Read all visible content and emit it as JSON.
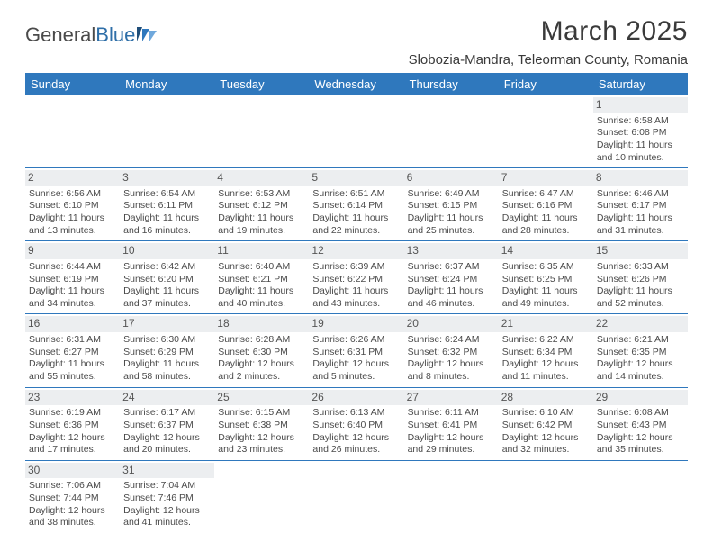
{
  "logo": {
    "text_gray": "General",
    "text_blue": "Blue"
  },
  "title": "March 2025",
  "location": "Slobozia-Mandra, Teleorman County, Romania",
  "colors": {
    "header_bg": "#2f78bd",
    "header_text": "#ffffff",
    "cell_border": "#2f78bd",
    "daynum_bg": "#eceef0",
    "body_text": "#4a4a4a"
  },
  "weekdays": [
    "Sunday",
    "Monday",
    "Tuesday",
    "Wednesday",
    "Thursday",
    "Friday",
    "Saturday"
  ],
  "weeks": [
    [
      null,
      null,
      null,
      null,
      null,
      null,
      {
        "n": "1",
        "sr": "Sunrise: 6:58 AM",
        "ss": "Sunset: 6:08 PM",
        "d1": "Daylight: 11 hours",
        "d2": "and 10 minutes."
      }
    ],
    [
      {
        "n": "2",
        "sr": "Sunrise: 6:56 AM",
        "ss": "Sunset: 6:10 PM",
        "d1": "Daylight: 11 hours",
        "d2": "and 13 minutes."
      },
      {
        "n": "3",
        "sr": "Sunrise: 6:54 AM",
        "ss": "Sunset: 6:11 PM",
        "d1": "Daylight: 11 hours",
        "d2": "and 16 minutes."
      },
      {
        "n": "4",
        "sr": "Sunrise: 6:53 AM",
        "ss": "Sunset: 6:12 PM",
        "d1": "Daylight: 11 hours",
        "d2": "and 19 minutes."
      },
      {
        "n": "5",
        "sr": "Sunrise: 6:51 AM",
        "ss": "Sunset: 6:14 PM",
        "d1": "Daylight: 11 hours",
        "d2": "and 22 minutes."
      },
      {
        "n": "6",
        "sr": "Sunrise: 6:49 AM",
        "ss": "Sunset: 6:15 PM",
        "d1": "Daylight: 11 hours",
        "d2": "and 25 minutes."
      },
      {
        "n": "7",
        "sr": "Sunrise: 6:47 AM",
        "ss": "Sunset: 6:16 PM",
        "d1": "Daylight: 11 hours",
        "d2": "and 28 minutes."
      },
      {
        "n": "8",
        "sr": "Sunrise: 6:46 AM",
        "ss": "Sunset: 6:17 PM",
        "d1": "Daylight: 11 hours",
        "d2": "and 31 minutes."
      }
    ],
    [
      {
        "n": "9",
        "sr": "Sunrise: 6:44 AM",
        "ss": "Sunset: 6:19 PM",
        "d1": "Daylight: 11 hours",
        "d2": "and 34 minutes."
      },
      {
        "n": "10",
        "sr": "Sunrise: 6:42 AM",
        "ss": "Sunset: 6:20 PM",
        "d1": "Daylight: 11 hours",
        "d2": "and 37 minutes."
      },
      {
        "n": "11",
        "sr": "Sunrise: 6:40 AM",
        "ss": "Sunset: 6:21 PM",
        "d1": "Daylight: 11 hours",
        "d2": "and 40 minutes."
      },
      {
        "n": "12",
        "sr": "Sunrise: 6:39 AM",
        "ss": "Sunset: 6:22 PM",
        "d1": "Daylight: 11 hours",
        "d2": "and 43 minutes."
      },
      {
        "n": "13",
        "sr": "Sunrise: 6:37 AM",
        "ss": "Sunset: 6:24 PM",
        "d1": "Daylight: 11 hours",
        "d2": "and 46 minutes."
      },
      {
        "n": "14",
        "sr": "Sunrise: 6:35 AM",
        "ss": "Sunset: 6:25 PM",
        "d1": "Daylight: 11 hours",
        "d2": "and 49 minutes."
      },
      {
        "n": "15",
        "sr": "Sunrise: 6:33 AM",
        "ss": "Sunset: 6:26 PM",
        "d1": "Daylight: 11 hours",
        "d2": "and 52 minutes."
      }
    ],
    [
      {
        "n": "16",
        "sr": "Sunrise: 6:31 AM",
        "ss": "Sunset: 6:27 PM",
        "d1": "Daylight: 11 hours",
        "d2": "and 55 minutes."
      },
      {
        "n": "17",
        "sr": "Sunrise: 6:30 AM",
        "ss": "Sunset: 6:29 PM",
        "d1": "Daylight: 11 hours",
        "d2": "and 58 minutes."
      },
      {
        "n": "18",
        "sr": "Sunrise: 6:28 AM",
        "ss": "Sunset: 6:30 PM",
        "d1": "Daylight: 12 hours",
        "d2": "and 2 minutes."
      },
      {
        "n": "19",
        "sr": "Sunrise: 6:26 AM",
        "ss": "Sunset: 6:31 PM",
        "d1": "Daylight: 12 hours",
        "d2": "and 5 minutes."
      },
      {
        "n": "20",
        "sr": "Sunrise: 6:24 AM",
        "ss": "Sunset: 6:32 PM",
        "d1": "Daylight: 12 hours",
        "d2": "and 8 minutes."
      },
      {
        "n": "21",
        "sr": "Sunrise: 6:22 AM",
        "ss": "Sunset: 6:34 PM",
        "d1": "Daylight: 12 hours",
        "d2": "and 11 minutes."
      },
      {
        "n": "22",
        "sr": "Sunrise: 6:21 AM",
        "ss": "Sunset: 6:35 PM",
        "d1": "Daylight: 12 hours",
        "d2": "and 14 minutes."
      }
    ],
    [
      {
        "n": "23",
        "sr": "Sunrise: 6:19 AM",
        "ss": "Sunset: 6:36 PM",
        "d1": "Daylight: 12 hours",
        "d2": "and 17 minutes."
      },
      {
        "n": "24",
        "sr": "Sunrise: 6:17 AM",
        "ss": "Sunset: 6:37 PM",
        "d1": "Daylight: 12 hours",
        "d2": "and 20 minutes."
      },
      {
        "n": "25",
        "sr": "Sunrise: 6:15 AM",
        "ss": "Sunset: 6:38 PM",
        "d1": "Daylight: 12 hours",
        "d2": "and 23 minutes."
      },
      {
        "n": "26",
        "sr": "Sunrise: 6:13 AM",
        "ss": "Sunset: 6:40 PM",
        "d1": "Daylight: 12 hours",
        "d2": "and 26 minutes."
      },
      {
        "n": "27",
        "sr": "Sunrise: 6:11 AM",
        "ss": "Sunset: 6:41 PM",
        "d1": "Daylight: 12 hours",
        "d2": "and 29 minutes."
      },
      {
        "n": "28",
        "sr": "Sunrise: 6:10 AM",
        "ss": "Sunset: 6:42 PM",
        "d1": "Daylight: 12 hours",
        "d2": "and 32 minutes."
      },
      {
        "n": "29",
        "sr": "Sunrise: 6:08 AM",
        "ss": "Sunset: 6:43 PM",
        "d1": "Daylight: 12 hours",
        "d2": "and 35 minutes."
      }
    ],
    [
      {
        "n": "30",
        "sr": "Sunrise: 7:06 AM",
        "ss": "Sunset: 7:44 PM",
        "d1": "Daylight: 12 hours",
        "d2": "and 38 minutes."
      },
      {
        "n": "31",
        "sr": "Sunrise: 7:04 AM",
        "ss": "Sunset: 7:46 PM",
        "d1": "Daylight: 12 hours",
        "d2": "and 41 minutes."
      },
      null,
      null,
      null,
      null,
      null
    ]
  ]
}
